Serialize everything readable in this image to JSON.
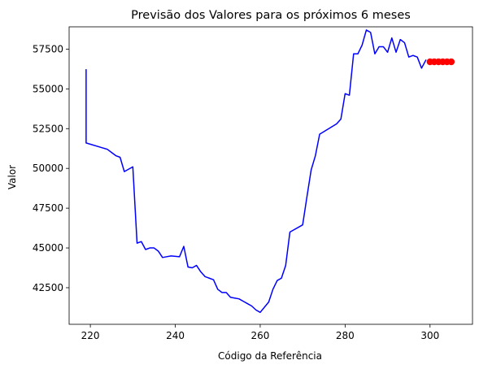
{
  "chart_data": {
    "type": "line",
    "title": "Previsão dos Valores para os próximos 6 meses",
    "xlabel": "Código da Referência",
    "ylabel": "Valor",
    "xlim": [
      215,
      310
    ],
    "ylim": [
      40200,
      58900
    ],
    "xticks": [
      220,
      240,
      260,
      280,
      300
    ],
    "yticks": [
      42500,
      45000,
      47500,
      50000,
      52500,
      55000,
      57500
    ],
    "grid": false,
    "series": [
      {
        "type": "line",
        "color": "#0000ff",
        "x": [
          219,
          219,
          224,
          225,
          226,
          227,
          228,
          230,
          231,
          232,
          233,
          234,
          235,
          236,
          237,
          238,
          239,
          241,
          242,
          243,
          244,
          245,
          246,
          247,
          248,
          249,
          250,
          251,
          252,
          253,
          254,
          255,
          256,
          257,
          258,
          259,
          260,
          262,
          263,
          264,
          265,
          266,
          267,
          270,
          271,
          272,
          273,
          274,
          278,
          279,
          280,
          281,
          282,
          283,
          284,
          285,
          286,
          287,
          288,
          289,
          290,
          291,
          292,
          293,
          294,
          295,
          296,
          297,
          298,
          299
        ],
        "y": [
          56200,
          51600,
          51200,
          51000,
          50800,
          50700,
          49800,
          50100,
          45300,
          45400,
          44900,
          45000,
          45000,
          44800,
          44400,
          44450,
          44500,
          44450,
          45100,
          43800,
          43750,
          43900,
          43500,
          43200,
          43100,
          43000,
          42400,
          42200,
          42200,
          41900,
          41850,
          41800,
          41650,
          41500,
          41350,
          41100,
          40950,
          41600,
          42400,
          42950,
          43100,
          43900,
          46000,
          46450,
          48200,
          49900,
          50800,
          52150,
          52800,
          53100,
          54700,
          54600,
          57200,
          57200,
          57750,
          58700,
          58550,
          57200,
          57650,
          57650,
          57300,
          58200,
          57300,
          58100,
          57900,
          57000,
          57100,
          57000,
          56300,
          56800
        ]
      },
      {
        "type": "scatter",
        "color": "#ff0000",
        "x": [
          300,
          301,
          302,
          303,
          304,
          305
        ],
        "y": [
          56700,
          56700,
          56700,
          56700,
          56700,
          56700
        ]
      }
    ]
  }
}
